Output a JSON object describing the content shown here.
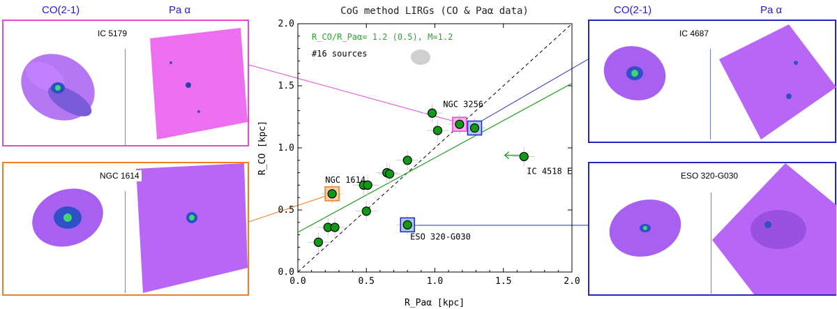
{
  "left_headers": {
    "co": "CO(2-1)",
    "pa": "Pa α"
  },
  "right_headers": {
    "co": "CO(2-1)",
    "pa": "Pa α"
  },
  "panels": {
    "ic5179": {
      "label": "IC 5179",
      "border": "#e24ad6"
    },
    "ngc1614": {
      "label": "NGC 1614",
      "border": "#f07d20"
    },
    "ic4687": {
      "label": "IC 4687",
      "border": "#2128c0"
    },
    "eso320": {
      "label": "ESO 320-G030",
      "border": "#2128c0"
    }
  },
  "colors": {
    "co_map": "#a860f0",
    "pa_map": "#b866f5",
    "pa_map_pink": "#ec6ff0",
    "points": "#0e9a14",
    "fit": "#2fa32f"
  },
  "chart_data": {
    "type": "scatter",
    "title": "CoG method LIRGs (CO & Paα data)",
    "xlabel": "R_Paα [kpc]",
    "ylabel": "R_CO [kpc]",
    "xlim": [
      0.0,
      2.0
    ],
    "ylim": [
      0.0,
      2.0
    ],
    "xticks": [
      "0.0",
      "0.5",
      "1.0",
      "1.5",
      "2.0"
    ],
    "yticks": [
      "0.0",
      "0.5",
      "1.0",
      "1.5",
      "2.0"
    ],
    "fit_label": "R_CO/R_Paα= 1.2 (0.5), M=1.2",
    "sources_label": "#16 sources",
    "fit_line": {
      "intercept": 0.32,
      "slope": 0.6
    },
    "one_to_one": true,
    "points": [
      {
        "x": 0.15,
        "y": 0.24
      },
      {
        "x": 0.22,
        "y": 0.36
      },
      {
        "x": 0.27,
        "y": 0.36
      },
      {
        "x": 0.25,
        "y": 0.63
      },
      {
        "x": 0.48,
        "y": 0.7
      },
      {
        "x": 0.51,
        "y": 0.7
      },
      {
        "x": 0.5,
        "y": 0.49
      },
      {
        "x": 0.65,
        "y": 0.8
      },
      {
        "x": 0.67,
        "y": 0.79
      },
      {
        "x": 0.8,
        "y": 0.9
      },
      {
        "x": 0.8,
        "y": 0.38
      },
      {
        "x": 0.98,
        "y": 1.28
      },
      {
        "x": 1.02,
        "y": 1.14
      },
      {
        "x": 1.18,
        "y": 1.19
      },
      {
        "x": 1.29,
        "y": 1.16
      },
      {
        "x": 1.65,
        "y": 0.93
      }
    ],
    "highlights": [
      {
        "x": 0.25,
        "y": 0.63,
        "color": "#f07d20",
        "fill": "#ffd0a0"
      },
      {
        "x": 1.18,
        "y": 1.19,
        "color": "#e24ad6",
        "fill": "#ffb0e8"
      },
      {
        "x": 1.29,
        "y": 1.16,
        "color": "#2128c0",
        "fill": "#a8c8f0"
      },
      {
        "x": 0.8,
        "y": 0.38,
        "color": "#2128c0",
        "fill": "#a8c8f0"
      }
    ],
    "annotations": [
      {
        "text": "NGC 3256",
        "x": 1.06,
        "y": 1.33
      },
      {
        "text": "NGC 1614",
        "x": 0.2,
        "y": 0.72
      },
      {
        "text": "IC 4518 E",
        "x": 1.67,
        "y": 0.79
      },
      {
        "text": "ESO 320-G030",
        "x": 0.82,
        "y": 0.26
      }
    ],
    "arrow": {
      "from_x": 1.62,
      "to_x": 1.51,
      "y": 0.94
    }
  }
}
